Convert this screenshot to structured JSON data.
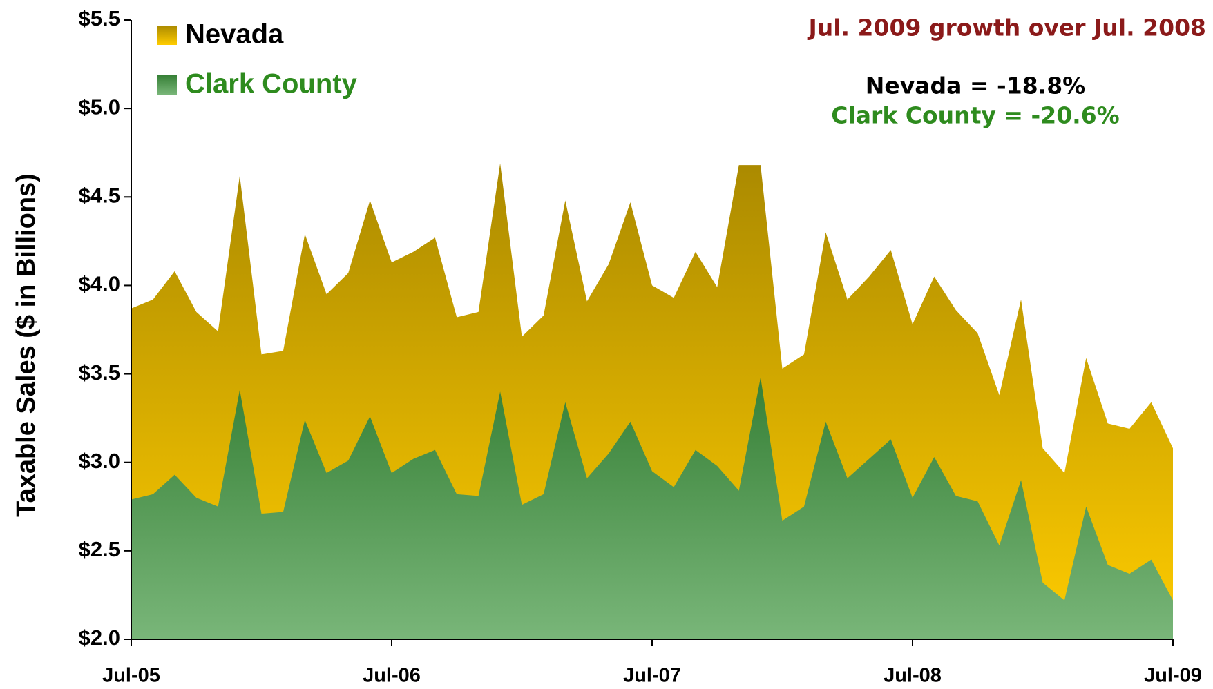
{
  "chart_data": {
    "type": "area",
    "y_label": "Taxable Sales ($ in Billions)",
    "annotations": [
      "Jul. 2009 growth over Jul. 2008",
      "Nevada = -18.8%",
      "Clark County = -20.6%"
    ],
    "categories": [
      "Jul-05",
      null,
      null,
      null,
      null,
      null,
      null,
      null,
      null,
      null,
      null,
      null,
      "Jul-06",
      null,
      null,
      null,
      null,
      null,
      null,
      null,
      null,
      null,
      null,
      null,
      "Jul-07",
      null,
      null,
      null,
      null,
      null,
      null,
      null,
      null,
      null,
      null,
      null,
      "Jul-08",
      null,
      null,
      null,
      null,
      null,
      null,
      null,
      null,
      null,
      null,
      null,
      "Jul-09"
    ],
    "series": [
      {
        "name": "Nevada",
        "color": "#c9a200",
        "values": [
          3.87,
          3.92,
          4.08,
          3.85,
          3.74,
          4.62,
          3.61,
          3.63,
          4.29,
          3.95,
          4.07,
          4.48,
          4.13,
          4.19,
          4.27,
          3.82,
          3.85,
          4.69,
          3.71,
          3.83,
          4.48,
          3.91,
          4.12,
          4.47,
          4.0,
          3.93,
          4.19,
          3.99,
          4.68,
          4.68,
          3.53,
          3.61,
          4.3,
          3.92,
          4.05,
          4.2,
          3.78,
          4.05,
          3.86,
          3.73,
          3.38,
          3.92,
          3.08,
          2.94,
          3.59,
          3.22,
          3.19,
          3.34,
          3.08
        ]
      },
      {
        "name": "Clark County",
        "color": "#3f963f",
        "values": [
          2.79,
          2.82,
          2.93,
          2.8,
          2.75,
          3.41,
          2.71,
          2.72,
          3.24,
          2.94,
          3.01,
          3.26,
          2.94,
          3.02,
          3.07,
          2.82,
          2.81,
          3.4,
          2.76,
          2.82,
          3.34,
          2.91,
          3.05,
          3.23,
          2.95,
          2.86,
          3.07,
          2.98,
          2.84,
          3.48,
          2.67,
          2.75,
          3.23,
          2.91,
          3.02,
          3.13,
          2.8,
          3.03,
          2.81,
          2.78,
          2.53,
          2.9,
          2.32,
          2.22,
          2.75,
          2.42,
          2.37,
          2.45,
          2.22
        ]
      }
    ],
    "ylim": [
      2.0,
      5.5
    ],
    "yticks": [
      {
        "value": 2.0,
        "label": "$2.0"
      },
      {
        "value": 2.5,
        "label": "$2.5"
      },
      {
        "value": 3.0,
        "label": "$3.0"
      },
      {
        "value": 3.5,
        "label": "$3.5"
      },
      {
        "value": 4.0,
        "label": "$4.0"
      },
      {
        "value": 4.5,
        "label": "$4.5"
      },
      {
        "value": 5.0,
        "label": "$5.0"
      },
      {
        "value": 5.5,
        "label": "$5.5"
      }
    ],
    "grid": false
  }
}
